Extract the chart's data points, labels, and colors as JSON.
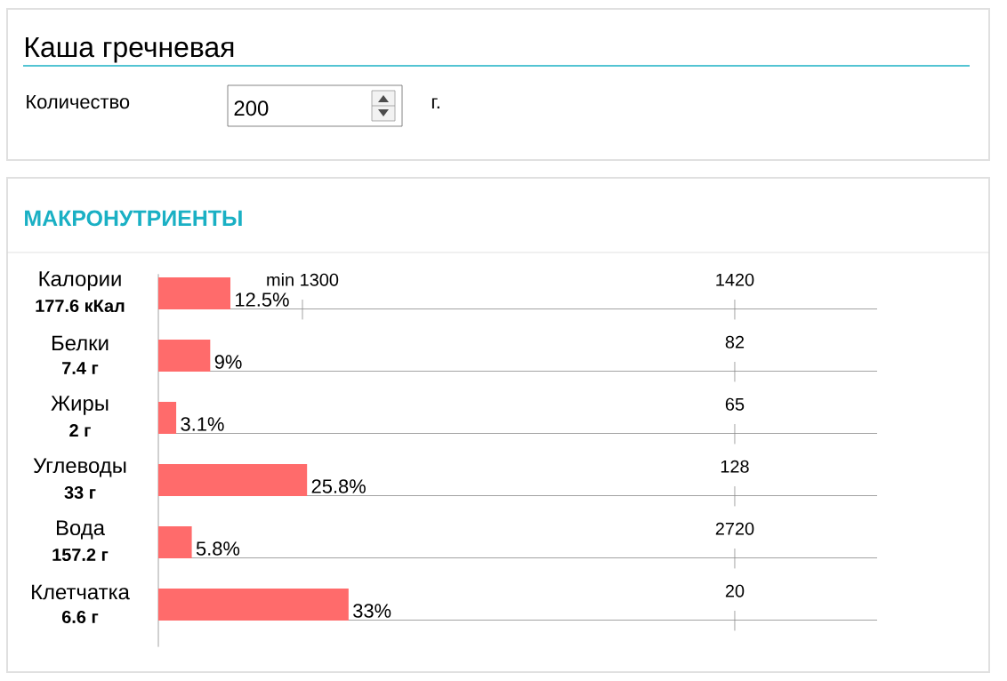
{
  "chart_data": {
    "type": "bar",
    "orientation": "horizontal",
    "title": "Каша гречневая",
    "subtitle": "МАКРОНУТРИЕНТЫ",
    "categories": [
      "Калории",
      "Белки",
      "Жиры",
      "Углеводы",
      "Вода",
      "Клетчатка"
    ],
    "values": [
      12.5,
      9,
      3.1,
      25.8,
      5.8,
      33
    ],
    "color": "#ff6b6b",
    "value_labels": [
      "12.5%",
      "9%",
      "3.1%",
      "25.8%",
      "5.8%",
      "33%"
    ],
    "annotations": [
      "Количество",
      "200",
      "г.",
      "177.6 кКал",
      "7.4 г",
      "2 г",
      "33 г",
      "157.2 г",
      "6.6 г",
      "min 1300",
      "1420",
      "82",
      "65",
      "128",
      "2720",
      "20"
    ]
  }
}
